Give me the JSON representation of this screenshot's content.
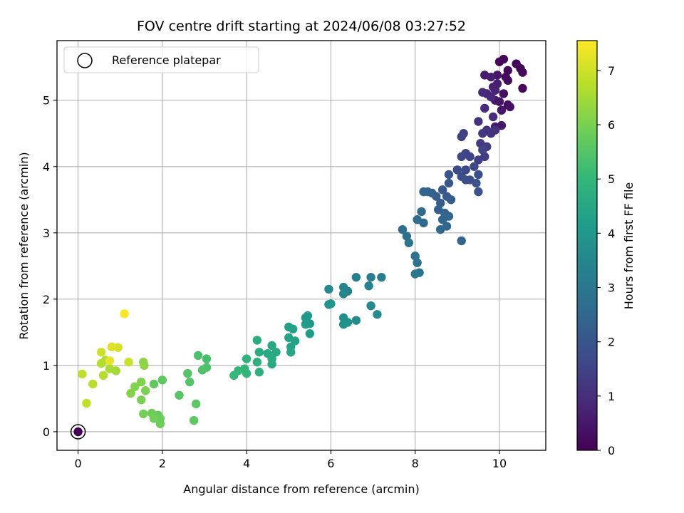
{
  "chart_data": {
    "type": "scatter",
    "title": "FOV centre drift starting at 2024/06/08 03:27:52",
    "xlabel": "Angular distance from reference (arcmin)",
    "ylabel": "Rotation from reference (arcmin)",
    "xlim": [
      -0.5,
      11.1
    ],
    "ylim": [
      -0.28,
      5.9
    ],
    "xticks": [
      0,
      2,
      4,
      6,
      8,
      10
    ],
    "yticks": [
      0,
      1,
      2,
      3,
      4,
      5
    ],
    "grid": true,
    "legend": {
      "label": "Reference platepar",
      "placement": "top-left",
      "marker": "hollow circle"
    },
    "reference_point": {
      "x": 0,
      "y": 0
    },
    "colorbar": {
      "label": "Hours from first FF file",
      "range": [
        0,
        7.55
      ],
      "ticks": [
        0,
        1,
        2,
        3,
        4,
        5,
        6,
        7
      ],
      "colormap": "viridis"
    },
    "colormap_stops": [
      "#440154",
      "#482878",
      "#3e4a89",
      "#31688e",
      "#26828e",
      "#1f9e89",
      "#35b779",
      "#6ece58",
      "#b5de2b",
      "#fde725"
    ],
    "point_fields": [
      "x_arcmin",
      "y_arcmin",
      "hours"
    ],
    "points": [
      [
        0.0,
        0.0,
        0.0
      ],
      [
        10.0,
        5.58,
        0.1
      ],
      [
        10.1,
        5.62,
        0.1
      ],
      [
        10.4,
        5.55,
        0.1
      ],
      [
        10.5,
        5.48,
        0.1
      ],
      [
        10.55,
        5.42,
        0.15
      ],
      [
        10.55,
        5.18,
        0.15
      ],
      [
        10.2,
        5.45,
        0.2
      ],
      [
        10.15,
        5.35,
        0.2
      ],
      [
        10.2,
        5.3,
        0.25
      ],
      [
        10.1,
        5.1,
        0.3
      ],
      [
        10.2,
        4.93,
        0.3
      ],
      [
        10.25,
        4.9,
        0.35
      ],
      [
        10.0,
        4.98,
        0.4
      ],
      [
        10.05,
        4.85,
        0.45
      ],
      [
        9.9,
        5.0,
        0.45
      ],
      [
        9.9,
        4.6,
        0.5
      ],
      [
        10.05,
        4.62,
        0.5
      ],
      [
        9.95,
        5.38,
        0.5
      ],
      [
        9.65,
        5.38,
        0.55
      ],
      [
        9.8,
        5.35,
        0.6
      ],
      [
        9.95,
        5.25,
        0.65
      ],
      [
        9.85,
        5.2,
        0.7
      ],
      [
        9.9,
        5.15,
        0.75
      ],
      [
        9.7,
        5.1,
        0.8
      ],
      [
        9.8,
        5.05,
        0.85
      ],
      [
        9.6,
        5.12,
        0.9
      ],
      [
        9.65,
        4.88,
        0.9
      ],
      [
        9.85,
        4.75,
        0.95
      ],
      [
        9.9,
        4.55,
        1.0
      ],
      [
        9.8,
        4.5,
        1.05
      ],
      [
        9.5,
        4.68,
        1.1
      ],
      [
        9.7,
        4.55,
        1.15
      ],
      [
        9.6,
        4.5,
        1.2
      ],
      [
        9.55,
        4.35,
        1.25
      ],
      [
        9.7,
        4.3,
        1.3
      ],
      [
        9.65,
        4.15,
        1.35
      ],
      [
        9.5,
        4.1,
        1.4
      ],
      [
        9.15,
        4.5,
        1.4
      ],
      [
        9.1,
        4.45,
        1.45
      ],
      [
        9.6,
        4.25,
        1.5
      ],
      [
        9.3,
        4.15,
        1.5
      ],
      [
        9.2,
        4.2,
        1.5
      ],
      [
        9.1,
        4.15,
        1.6
      ],
      [
        9.4,
        4.0,
        1.6
      ],
      [
        9.2,
        3.95,
        1.65
      ],
      [
        9.0,
        3.95,
        1.7
      ],
      [
        9.1,
        3.85,
        1.75
      ],
      [
        9.3,
        3.8,
        1.8
      ],
      [
        9.2,
        3.8,
        1.85
      ],
      [
        9.5,
        3.88,
        1.85
      ],
      [
        9.5,
        3.62,
        1.9
      ],
      [
        9.45,
        3.75,
        1.95
      ],
      [
        8.8,
        3.88,
        2.0
      ],
      [
        8.8,
        3.75,
        2.05
      ],
      [
        8.65,
        3.65,
        2.1
      ],
      [
        8.75,
        3.55,
        2.15
      ],
      [
        8.85,
        3.5,
        2.2
      ],
      [
        8.5,
        3.55,
        2.2
      ],
      [
        8.6,
        3.45,
        2.25
      ],
      [
        8.55,
        3.35,
        2.3
      ],
      [
        8.4,
        3.6,
        2.35
      ],
      [
        8.3,
        3.62,
        2.35
      ],
      [
        8.2,
        3.62,
        2.4
      ],
      [
        8.7,
        3.3,
        2.4
      ],
      [
        8.8,
        3.25,
        2.45
      ],
      [
        8.65,
        3.2,
        2.5
      ],
      [
        9.1,
        2.88,
        2.5
      ],
      [
        8.6,
        3.05,
        2.55
      ],
      [
        8.75,
        3.1,
        2.55
      ],
      [
        8.15,
        3.32,
        2.6
      ],
      [
        8.2,
        3.15,
        2.6
      ],
      [
        8.05,
        3.2,
        2.65
      ],
      [
        7.7,
        3.05,
        2.7
      ],
      [
        7.8,
        2.95,
        2.75
      ],
      [
        7.85,
        2.85,
        2.8
      ],
      [
        8.0,
        2.65,
        2.85
      ],
      [
        8.05,
        2.55,
        2.9
      ],
      [
        8.1,
        2.4,
        2.95
      ],
      [
        8.0,
        2.38,
        3.0
      ],
      [
        6.95,
        2.33,
        3.2
      ],
      [
        7.2,
        2.33,
        3.25
      ],
      [
        6.6,
        2.33,
        3.3
      ],
      [
        6.9,
        2.2,
        3.35
      ],
      [
        6.4,
        2.12,
        3.4
      ],
      [
        6.3,
        2.18,
        3.45
      ],
      [
        6.3,
        2.08,
        3.5
      ],
      [
        5.95,
        2.15,
        3.55
      ],
      [
        6.95,
        1.9,
        3.6
      ],
      [
        7.1,
        1.77,
        3.65
      ],
      [
        6.6,
        1.68,
        3.7
      ],
      [
        6.3,
        1.72,
        3.75
      ],
      [
        6.4,
        1.65,
        3.8
      ],
      [
        6.3,
        1.62,
        3.85
      ],
      [
        5.95,
        1.92,
        3.9
      ],
      [
        6.0,
        1.93,
        3.95
      ],
      [
        5.45,
        1.75,
        4.0
      ],
      [
        5.4,
        1.72,
        4.05
      ],
      [
        5.5,
        1.63,
        4.1
      ],
      [
        5.4,
        1.62,
        4.15
      ],
      [
        5.5,
        1.48,
        4.2
      ],
      [
        5.0,
        1.58,
        4.25
      ],
      [
        5.1,
        1.55,
        4.3
      ],
      [
        5.0,
        1.42,
        4.35
      ],
      [
        5.15,
        1.37,
        4.4
      ],
      [
        5.05,
        1.28,
        4.4
      ],
      [
        5.05,
        1.2,
        4.45
      ],
      [
        4.6,
        1.3,
        4.5
      ],
      [
        4.7,
        1.2,
        4.55
      ],
      [
        4.5,
        1.18,
        4.55
      ],
      [
        4.6,
        1.1,
        4.6
      ],
      [
        4.6,
        1.02,
        4.6
      ],
      [
        4.3,
        1.2,
        4.65
      ],
      [
        4.25,
        1.38,
        4.7
      ],
      [
        4.25,
        1.05,
        4.75
      ],
      [
        4.3,
        0.9,
        4.8
      ],
      [
        4.0,
        1.1,
        4.85
      ],
      [
        3.95,
        0.95,
        4.9
      ],
      [
        4.0,
        0.88,
        4.95
      ],
      [
        3.8,
        0.92,
        5.0
      ],
      [
        3.7,
        0.85,
        5.05
      ],
      [
        3.05,
        1.1,
        5.3
      ],
      [
        2.85,
        1.15,
        5.35
      ],
      [
        3.05,
        0.97,
        5.4
      ],
      [
        2.95,
        0.93,
        5.45
      ],
      [
        2.6,
        0.88,
        5.5
      ],
      [
        2.65,
        0.75,
        5.5
      ],
      [
        2.4,
        0.55,
        5.55
      ],
      [
        2.8,
        0.42,
        5.6
      ],
      [
        2.75,
        0.17,
        5.6
      ],
      [
        2.0,
        0.78,
        5.65
      ],
      [
        1.8,
        0.72,
        5.7
      ],
      [
        1.9,
        0.25,
        5.75
      ],
      [
        1.95,
        0.2,
        5.8
      ],
      [
        1.95,
        0.12,
        5.85
      ],
      [
        1.75,
        0.28,
        5.85
      ],
      [
        1.8,
        0.2,
        5.9
      ],
      [
        1.55,
        0.27,
        5.95
      ],
      [
        1.6,
        0.62,
        6.0
      ],
      [
        1.5,
        0.48,
        6.0
      ],
      [
        1.5,
        0.75,
        6.05
      ],
      [
        1.35,
        0.68,
        6.1
      ],
      [
        1.25,
        0.58,
        6.15
      ],
      [
        1.55,
        1.05,
        6.2
      ],
      [
        1.57,
        1.0,
        6.25
      ],
      [
        0.9,
        0.92,
        6.5
      ],
      [
        0.75,
        0.95,
        6.55
      ],
      [
        0.65,
        1.08,
        6.6
      ],
      [
        0.55,
        1.03,
        6.65
      ],
      [
        0.6,
        0.85,
        6.7
      ],
      [
        0.35,
        0.72,
        6.75
      ],
      [
        0.1,
        0.87,
        6.8
      ],
      [
        0.2,
        0.43,
        6.85
      ],
      [
        1.2,
        1.05,
        6.95
      ],
      [
        0.55,
        1.2,
        7.0
      ],
      [
        0.95,
        1.27,
        7.1
      ],
      [
        0.8,
        1.28,
        7.2
      ],
      [
        0.75,
        1.07,
        7.3
      ],
      [
        1.1,
        1.78,
        7.5
      ]
    ]
  }
}
